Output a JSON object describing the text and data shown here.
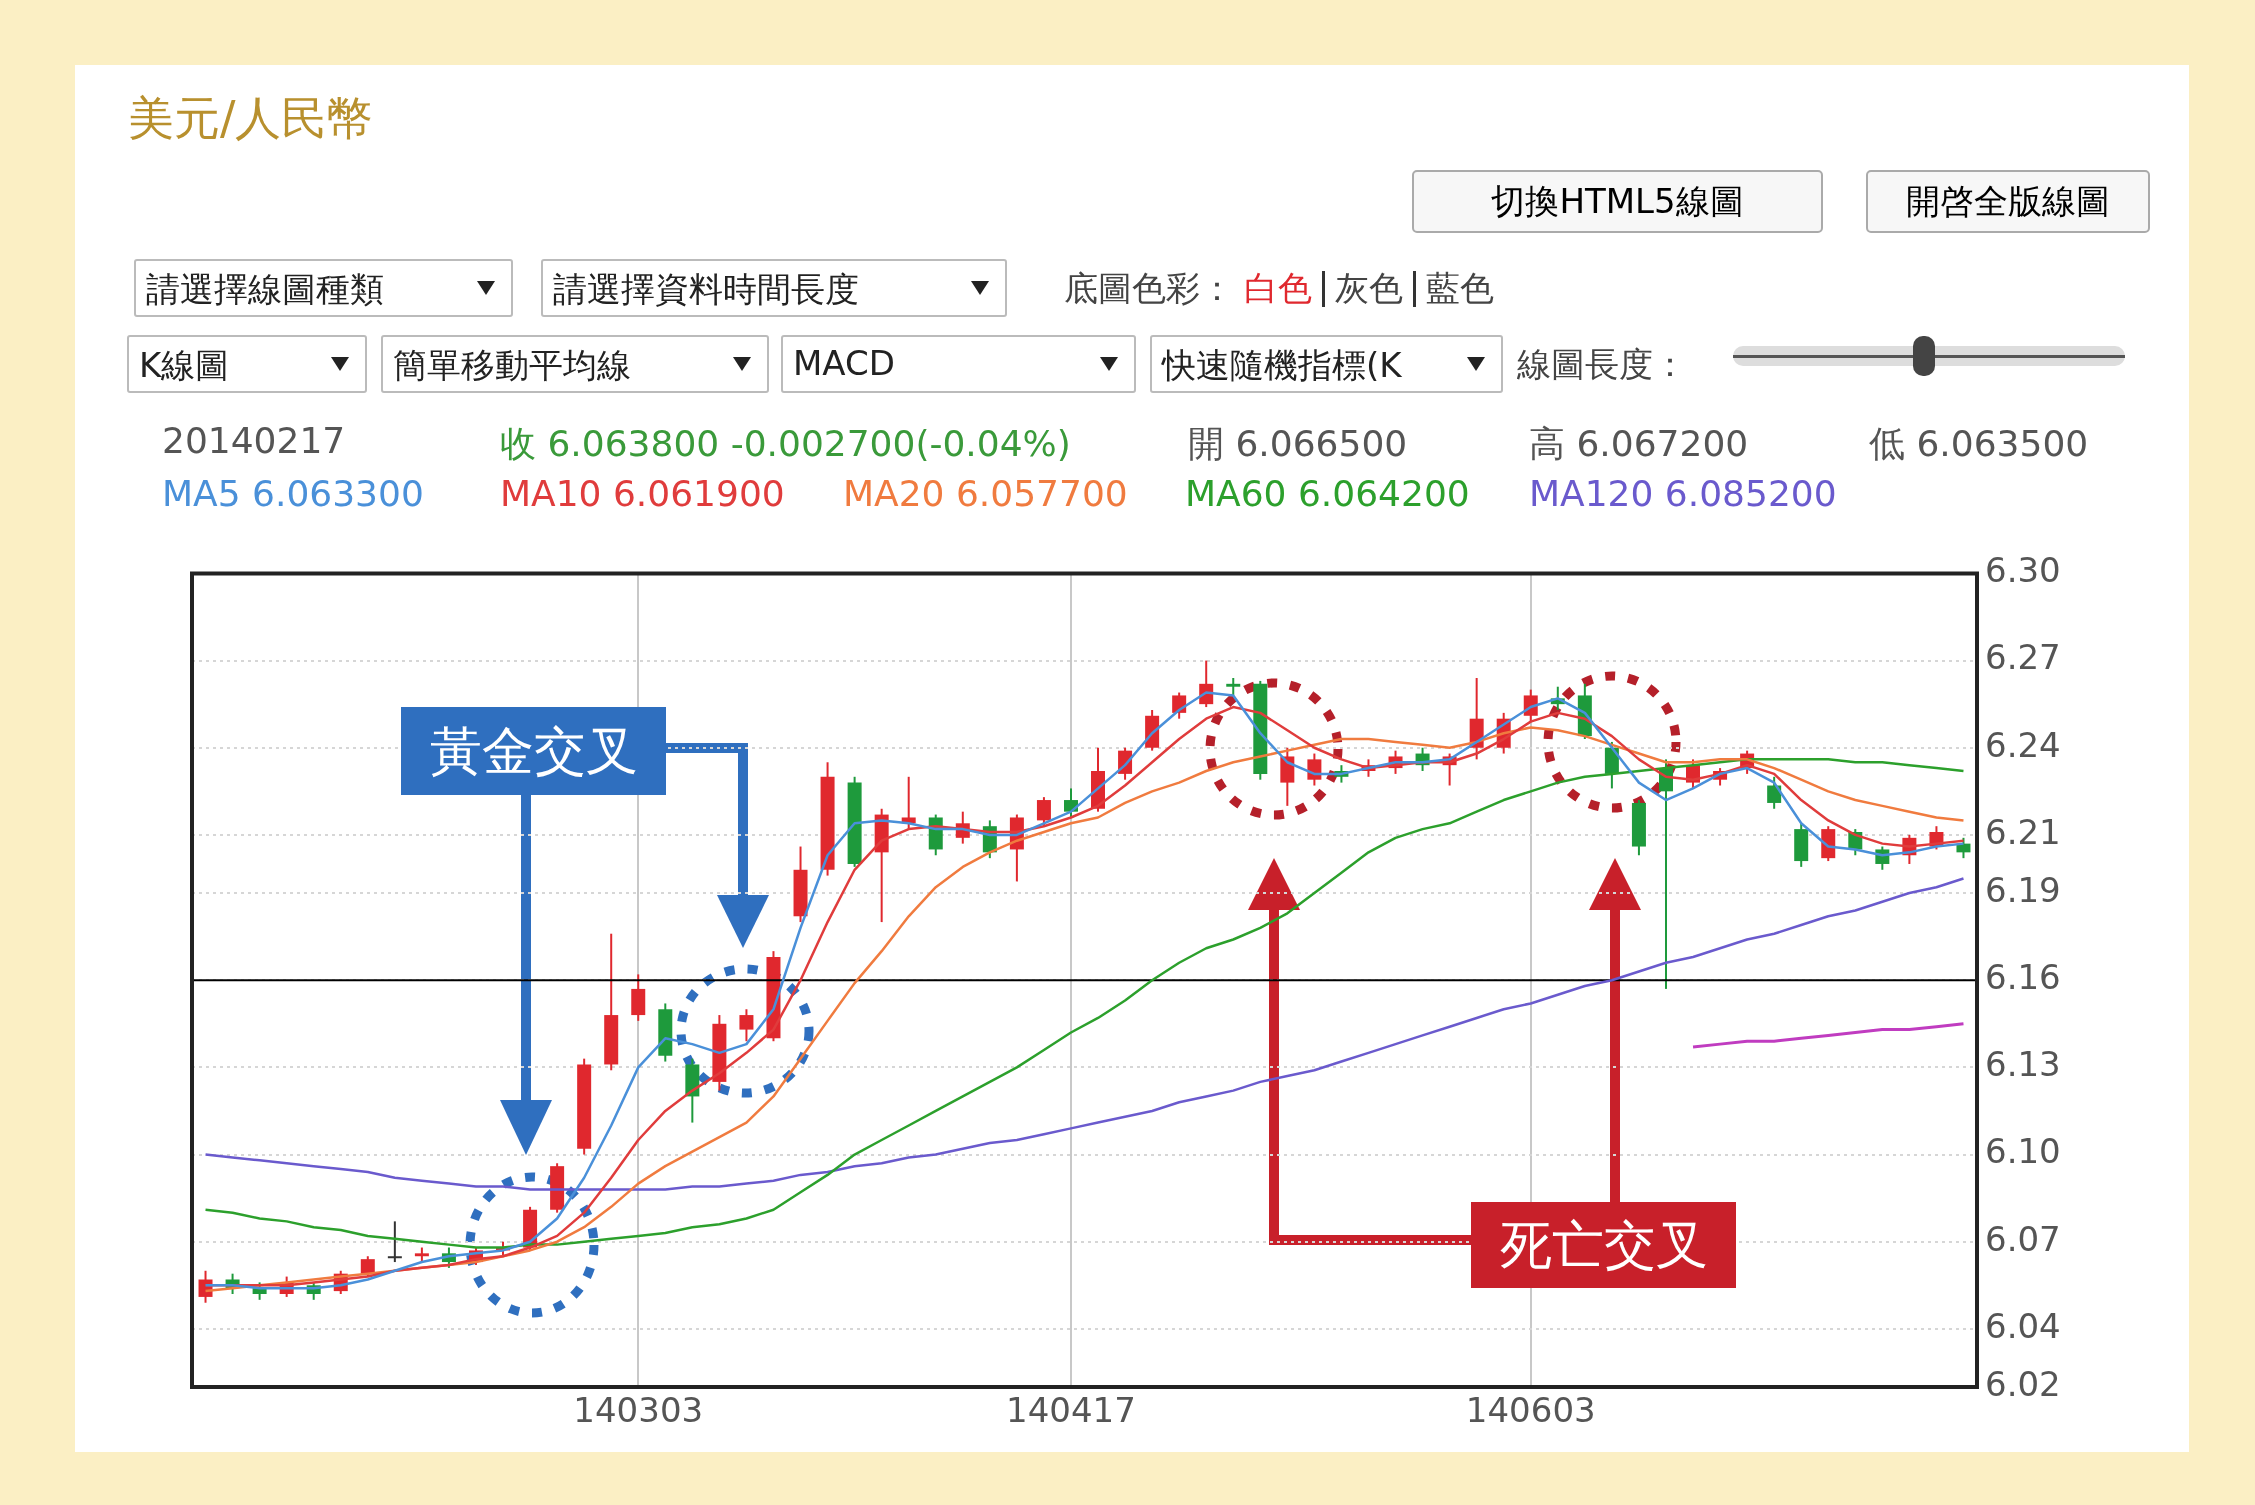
{
  "chart_data": {
    "type": "candlestick",
    "title": "美元/人民幣",
    "categories": [
      null,
      null,
      null,
      null,
      null,
      null,
      null,
      null,
      null,
      null,
      null,
      null,
      null,
      null,
      null,
      null,
      "140303",
      null,
      null,
      null,
      null,
      null,
      null,
      null,
      null,
      null,
      null,
      null,
      null,
      null,
      null,
      null,
      "140417",
      null,
      null,
      null,
      null,
      null,
      null,
      null,
      null,
      null,
      null,
      null,
      null,
      null,
      null,
      null,
      null,
      "140603",
      null,
      null,
      null,
      null,
      null,
      null,
      null,
      null,
      null,
      null,
      null,
      null,
      null,
      null,
      null,
      null
    ],
    "ohlc": [
      [
        6.051,
        6.06,
        6.049,
        6.057
      ],
      [
        6.057,
        6.059,
        6.052,
        6.054
      ],
      [
        6.054,
        6.056,
        6.05,
        6.052
      ],
      [
        6.052,
        6.058,
        6.051,
        6.056
      ],
      [
        6.055,
        6.056,
        6.05,
        6.052
      ],
      [
        6.053,
        6.06,
        6.052,
        6.059
      ],
      [
        6.059,
        6.065,
        6.058,
        6.064
      ],
      [
        6.065,
        6.077,
        6.063,
        6.065
      ],
      [
        6.065,
        6.068,
        6.063,
        6.066
      ],
      [
        6.066,
        6.068,
        6.061,
        6.063
      ],
      [
        6.063,
        6.068,
        6.062,
        6.067
      ],
      [
        6.067,
        6.07,
        6.065,
        6.068
      ],
      [
        6.068,
        6.082,
        6.067,
        6.081
      ],
      [
        6.081,
        6.097,
        6.08,
        6.096
      ],
      [
        6.102,
        6.133,
        6.1,
        6.131
      ],
      [
        6.131,
        6.176,
        6.129,
        6.148
      ],
      [
        6.148,
        6.162,
        6.146,
        6.157
      ],
      [
        6.15,
        6.152,
        6.132,
        6.134
      ],
      [
        6.131,
        6.133,
        6.111,
        6.12
      ],
      [
        6.125,
        6.148,
        6.122,
        6.145
      ],
      [
        6.143,
        6.15,
        6.139,
        6.148
      ],
      [
        6.14,
        6.17,
        6.139,
        6.168
      ],
      [
        6.182,
        6.206,
        6.18,
        6.198
      ],
      [
        6.198,
        6.235,
        6.196,
        6.23
      ],
      [
        6.228,
        6.23,
        6.199,
        6.2
      ],
      [
        6.204,
        6.219,
        6.18,
        6.217
      ],
      [
        6.214,
        6.23,
        6.212,
        6.216
      ],
      [
        6.216,
        6.217,
        6.203,
        6.205
      ],
      [
        6.209,
        6.218,
        6.207,
        6.214
      ],
      [
        6.213,
        6.215,
        6.202,
        6.204
      ],
      [
        6.205,
        6.217,
        6.194,
        6.216
      ],
      [
        6.215,
        6.223,
        6.213,
        6.222
      ],
      [
        6.222,
        6.226,
        6.216,
        6.218
      ],
      [
        6.219,
        6.24,
        6.218,
        6.232
      ],
      [
        6.231,
        6.24,
        6.229,
        6.239
      ],
      [
        6.24,
        6.253,
        6.239,
        6.251
      ],
      [
        6.252,
        6.259,
        6.25,
        6.258
      ],
      [
        6.255,
        6.27,
        6.254,
        6.262
      ],
      [
        6.262,
        6.264,
        6.258,
        6.261
      ],
      [
        6.262,
        6.263,
        6.229,
        6.231
      ],
      [
        6.228,
        6.24,
        6.22,
        6.237
      ],
      [
        6.229,
        6.238,
        6.227,
        6.236
      ],
      [
        6.232,
        6.234,
        6.228,
        6.23
      ],
      [
        6.232,
        6.236,
        6.23,
        6.234
      ],
      [
        6.233,
        6.239,
        6.231,
        6.237
      ],
      [
        6.238,
        6.24,
        6.232,
        6.234
      ],
      [
        6.234,
        6.238,
        6.227,
        6.237
      ],
      [
        6.24,
        6.264,
        6.236,
        6.25
      ],
      [
        6.24,
        6.252,
        6.238,
        6.25
      ],
      [
        6.251,
        6.26,
        6.249,
        6.258
      ],
      [
        6.257,
        6.261,
        6.253,
        6.255
      ],
      [
        6.258,
        6.262,
        6.243,
        6.244
      ],
      [
        6.24,
        6.242,
        6.226,
        6.231
      ],
      [
        6.221,
        6.222,
        6.203,
        6.206
      ],
      [
        6.233,
        6.236,
        6.157,
        6.225
      ],
      [
        6.228,
        6.236,
        6.226,
        6.234
      ],
      [
        6.229,
        6.233,
        6.227,
        6.232
      ],
      [
        6.233,
        6.239,
        6.231,
        6.238
      ],
      [
        6.227,
        6.23,
        6.219,
        6.221
      ],
      [
        6.212,
        6.214,
        6.199,
        6.201
      ],
      [
        6.202,
        6.213,
        6.201,
        6.212
      ],
      [
        6.211,
        6.212,
        6.203,
        6.205
      ],
      [
        6.205,
        6.206,
        6.198,
        6.2
      ],
      [
        6.203,
        6.21,
        6.2,
        6.209
      ],
      [
        6.206,
        6.213,
        6.205,
        6.211
      ],
      [
        6.207,
        6.209,
        6.202,
        6.204
      ]
    ],
    "colors": [
      "#e0282e",
      "#1e9a3c",
      "#1e9a3c",
      "#e0282e",
      "#1e9a3c",
      "#e0282e",
      "#e0282e",
      "#333333",
      "#e0282e",
      "#1e9a3c",
      "#e0282e",
      "#e0282e",
      "#e0282e",
      "#e0282e",
      "#e0282e",
      "#e0282e",
      "#e0282e",
      "#1e9a3c",
      "#1e9a3c",
      "#e0282e",
      "#e0282e",
      "#e0282e",
      "#e0282e",
      "#e0282e",
      "#1e9a3c",
      "#e0282e",
      "#e0282e",
      "#1e9a3c",
      "#e0282e",
      "#1e9a3c",
      "#e0282e",
      "#e0282e",
      "#1e9a3c",
      "#e0282e",
      "#e0282e",
      "#e0282e",
      "#e0282e",
      "#e0282e",
      "#1e9a3c",
      "#1e9a3c",
      "#e0282e",
      "#e0282e",
      "#1e9a3c",
      "#e0282e",
      "#e0282e",
      "#1e9a3c",
      "#e0282e",
      "#e0282e",
      "#e0282e",
      "#e0282e",
      "#1e9a3c",
      "#1e9a3c",
      "#1e9a3c",
      "#1e9a3c",
      "#1e9a3c",
      "#e0282e",
      "#e0282e",
      "#e0282e",
      "#1e9a3c",
      "#1e9a3c",
      "#e0282e",
      "#1e9a3c",
      "#1e9a3c",
      "#e0282e",
      "#e0282e",
      "#1e9a3c"
    ],
    "series": [
      {
        "type": "line",
        "name": "MA5 6.063300",
        "color": "#4a90d9",
        "values": [
          6.055,
          6.055,
          6.054,
          6.054,
          6.054,
          6.055,
          6.057,
          6.06,
          6.063,
          6.065,
          6.066,
          6.067,
          6.07,
          6.078,
          6.092,
          6.11,
          6.13,
          6.14,
          6.138,
          6.135,
          6.138,
          6.15,
          6.178,
          6.203,
          6.214,
          6.215,
          6.214,
          6.212,
          6.212,
          6.21,
          6.21,
          6.214,
          6.218,
          6.226,
          6.234,
          6.245,
          6.253,
          6.259,
          6.258,
          6.245,
          6.235,
          6.231,
          6.231,
          6.233,
          6.235,
          6.235,
          6.236,
          6.242,
          6.248,
          6.254,
          6.257,
          6.252,
          6.24,
          6.228,
          6.222,
          6.226,
          6.231,
          6.233,
          6.228,
          6.214,
          6.206,
          6.205,
          6.203,
          6.204,
          6.206,
          6.207
        ]
      },
      {
        "type": "line",
        "name": "MA10 6.061900",
        "color": "#e03c3c",
        "values": [
          6.055,
          6.055,
          6.055,
          6.055,
          6.056,
          6.057,
          6.058,
          6.06,
          6.061,
          6.062,
          6.064,
          6.065,
          6.068,
          6.072,
          6.08,
          6.092,
          6.105,
          6.115,
          6.122,
          6.128,
          6.135,
          6.143,
          6.16,
          6.18,
          6.198,
          6.208,
          6.212,
          6.213,
          6.212,
          6.211,
          6.211,
          6.213,
          6.216,
          6.22,
          6.227,
          6.235,
          6.243,
          6.25,
          6.254,
          6.252,
          6.246,
          6.24,
          6.236,
          6.233,
          6.234,
          6.235,
          6.235,
          6.238,
          6.243,
          6.249,
          6.252,
          6.25,
          6.244,
          6.236,
          6.23,
          6.229,
          6.231,
          6.234,
          6.231,
          6.222,
          6.215,
          6.21,
          6.207,
          6.206,
          6.207,
          6.208
        ]
      },
      {
        "type": "line",
        "name": "MA20 6.057700",
        "color": "#f07b3f",
        "values": [
          6.053,
          6.054,
          6.055,
          6.056,
          6.057,
          6.058,
          6.059,
          6.06,
          6.061,
          6.062,
          6.063,
          6.065,
          6.067,
          6.07,
          6.075,
          6.082,
          6.09,
          6.096,
          6.101,
          6.106,
          6.111,
          6.12,
          6.133,
          6.146,
          6.159,
          6.17,
          6.182,
          6.192,
          6.199,
          6.204,
          6.208,
          6.211,
          6.214,
          6.216,
          6.221,
          6.225,
          6.228,
          6.232,
          6.235,
          6.237,
          6.239,
          6.241,
          6.243,
          6.243,
          6.242,
          6.241,
          6.24,
          6.242,
          6.245,
          6.247,
          6.246,
          6.244,
          6.241,
          6.238,
          6.235,
          6.235,
          6.236,
          6.236,
          6.233,
          6.229,
          6.225,
          6.222,
          6.22,
          6.218,
          6.216,
          6.215
        ]
      },
      {
        "type": "line",
        "name": "MA60 6.064200",
        "color": "#2ca02c",
        "values": [
          6.081,
          6.08,
          6.078,
          6.077,
          6.075,
          6.074,
          6.072,
          6.071,
          6.07,
          6.069,
          6.068,
          6.068,
          6.069,
          6.069,
          6.07,
          6.071,
          6.072,
          6.073,
          6.075,
          6.076,
          6.078,
          6.081,
          6.087,
          6.093,
          6.1,
          6.105,
          6.11,
          6.115,
          6.12,
          6.125,
          6.13,
          6.136,
          6.142,
          6.147,
          6.153,
          6.16,
          6.166,
          6.171,
          6.174,
          6.178,
          6.183,
          6.19,
          6.197,
          6.204,
          6.209,
          6.212,
          6.214,
          6.218,
          6.222,
          6.225,
          6.228,
          6.23,
          6.231,
          6.232,
          6.233,
          6.234,
          6.235,
          6.236,
          6.236,
          6.236,
          6.236,
          6.235,
          6.235,
          6.234,
          6.233,
          6.232
        ]
      },
      {
        "type": "line",
        "name": "MA120 6.085200",
        "color": "#6a5acd",
        "values": [
          6.1,
          6.099,
          6.098,
          6.097,
          6.096,
          6.095,
          6.094,
          6.092,
          6.091,
          6.09,
          6.089,
          6.089,
          6.088,
          6.088,
          6.088,
          6.088,
          6.088,
          6.088,
          6.089,
          6.089,
          6.09,
          6.091,
          6.093,
          6.094,
          6.096,
          6.097,
          6.099,
          6.1,
          6.102,
          6.104,
          6.105,
          6.107,
          6.109,
          6.111,
          6.113,
          6.115,
          6.118,
          6.12,
          6.122,
          6.125,
          6.127,
          6.129,
          6.132,
          6.135,
          6.138,
          6.141,
          6.144,
          6.147,
          6.15,
          6.152,
          6.155,
          6.158,
          6.16,
          6.163,
          6.166,
          6.168,
          6.171,
          6.174,
          6.176,
          6.179,
          6.182,
          6.184,
          6.187,
          6.19,
          6.192,
          6.195
        ]
      },
      {
        "type": "line",
        "color": "#c03cc0",
        "values": [
          null,
          null,
          null,
          null,
          null,
          null,
          null,
          null,
          null,
          null,
          null,
          null,
          null,
          null,
          null,
          null,
          null,
          null,
          null,
          null,
          null,
          null,
          null,
          null,
          null,
          null,
          null,
          null,
          null,
          null,
          null,
          null,
          null,
          null,
          null,
          null,
          null,
          null,
          null,
          null,
          null,
          null,
          null,
          null,
          null,
          null,
          null,
          null,
          null,
          null,
          null,
          null,
          null,
          null,
          null,
          6.137,
          6.138,
          6.139,
          6.139,
          6.14,
          6.141,
          6.142,
          6.143,
          6.143,
          6.144,
          6.145
        ]
      }
    ],
    "ylim": [
      6.02,
      6.3
    ],
    "yticks": [
      {
        "value": 6.02,
        "label": "6.02"
      },
      {
        "value": 6.04,
        "label": "6.04"
      },
      {
        "value": 6.07,
        "label": "6.07"
      },
      {
        "value": 6.1,
        "label": "6.10"
      },
      {
        "value": 6.13,
        "label": "6.13"
      },
      {
        "value": 6.16,
        "label": "6.16"
      },
      {
        "value": 6.19,
        "label": "6.19"
      },
      {
        "value": 6.21,
        "label": "6.21"
      },
      {
        "value": 6.24,
        "label": "6.24"
      },
      {
        "value": 6.27,
        "label": "6.27"
      },
      {
        "value": 6.3,
        "label": "6.30"
      }
    ],
    "ref_lines": [
      {
        "axis": "y",
        "value": 6.16,
        "color": "#000000"
      }
    ],
    "grid": true,
    "legend": "top",
    "annotations": [
      "20140217",
      "收 6.063800 -0.002700(-0.04%)",
      "開 6.066500",
      "高 6.067200",
      "低 6.063500",
      "黃金交叉",
      "死亡交叉",
      "切換HTML5線圖",
      "開啓全版線圖",
      "請選擇線圖種類",
      "請選擇資料時間長度",
      "底圖色彩：",
      "白色",
      "灰色",
      "藍色",
      "K線圖",
      "簡單移動平均線",
      "MACD",
      "快速隨機指標(K",
      "線圖長度："
    ]
  }
}
